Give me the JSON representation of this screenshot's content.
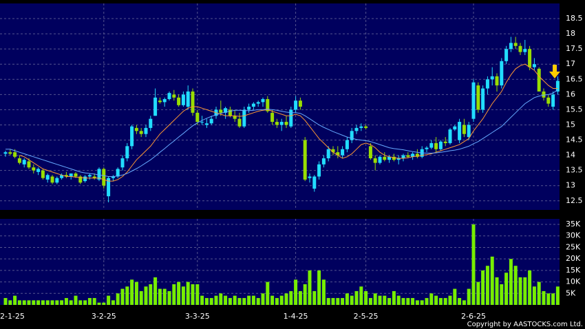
{
  "chart_data": {
    "type": "candlestick",
    "categories": [
      "2-1-25",
      null,
      null,
      null,
      null,
      null,
      null,
      null,
      null,
      null,
      null,
      null,
      null,
      null,
      null,
      null,
      null,
      null,
      null,
      null,
      null,
      "3-2-25",
      null,
      null,
      null,
      null,
      null,
      null,
      null,
      null,
      null,
      null,
      null,
      null,
      null,
      null,
      null,
      null,
      null,
      null,
      null,
      "3-3-25",
      null,
      null,
      null,
      null,
      null,
      null,
      null,
      null,
      null,
      null,
      null,
      null,
      null,
      null,
      null,
      null,
      null,
      null,
      null,
      null,
      "1-4-25",
      null,
      null,
      null,
      null,
      null,
      null,
      null,
      null,
      null,
      null,
      null,
      null,
      null,
      null,
      "2-5-25",
      null,
      null,
      null,
      null,
      null,
      null,
      null,
      null,
      null,
      null,
      null,
      null,
      null,
      null,
      null,
      null,
      null,
      null,
      null,
      null,
      null,
      null,
      "2-6-25",
      null,
      null,
      null,
      null,
      null,
      null,
      null,
      null,
      null,
      null,
      null,
      null,
      null,
      null,
      null,
      null,
      null,
      null
    ],
    "ohlc": [
      [
        14.05,
        14.15,
        13.95,
        14.1
      ],
      [
        14.1,
        14.2,
        14.0,
        14.05
      ],
      [
        14.1,
        14.2,
        13.9,
        13.95
      ],
      [
        13.9,
        14.0,
        13.7,
        13.75
      ],
      [
        13.7,
        13.9,
        13.6,
        13.85
      ],
      [
        13.8,
        13.9,
        13.55,
        13.6
      ],
      [
        13.6,
        13.7,
        13.4,
        13.5
      ],
      [
        13.45,
        13.6,
        13.35,
        13.55
      ],
      [
        13.5,
        13.55,
        13.2,
        13.25
      ],
      [
        13.2,
        13.4,
        13.1,
        13.35
      ],
      [
        13.3,
        13.35,
        13.05,
        13.1
      ],
      [
        13.1,
        13.3,
        13.05,
        13.25
      ],
      [
        13.25,
        13.4,
        13.2,
        13.35
      ],
      [
        13.35,
        13.45,
        13.25,
        13.3
      ],
      [
        13.3,
        13.4,
        13.2,
        13.4
      ],
      [
        13.4,
        13.45,
        13.25,
        13.3
      ],
      [
        13.3,
        13.35,
        13.05,
        13.1
      ],
      [
        13.15,
        13.35,
        13.1,
        13.3
      ],
      [
        13.3,
        13.4,
        13.2,
        13.35
      ],
      [
        13.3,
        13.4,
        13.2,
        13.25
      ],
      [
        13.2,
        13.6,
        13.15,
        13.55
      ],
      [
        13.55,
        13.6,
        12.9,
        13.0
      ],
      [
        12.65,
        13.3,
        12.45,
        13.25
      ],
      [
        13.25,
        13.35,
        13.15,
        13.3
      ],
      [
        13.3,
        13.6,
        13.25,
        13.55
      ],
      [
        13.6,
        14.0,
        13.5,
        13.9
      ],
      [
        13.9,
        14.4,
        13.8,
        14.3
      ],
      [
        14.3,
        15.0,
        14.2,
        14.95
      ],
      [
        14.9,
        15.0,
        14.7,
        14.8
      ],
      [
        14.8,
        14.9,
        14.6,
        14.7
      ],
      [
        14.7,
        15.0,
        14.6,
        14.9
      ],
      [
        14.9,
        15.3,
        14.8,
        15.2
      ],
      [
        15.3,
        16.2,
        15.3,
        15.9
      ],
      [
        15.8,
        15.9,
        15.7,
        15.75
      ],
      [
        15.75,
        15.9,
        15.6,
        15.85
      ],
      [
        15.85,
        16.1,
        15.8,
        16.05
      ],
      [
        16.0,
        16.15,
        15.8,
        15.9
      ],
      [
        15.9,
        16.0,
        15.6,
        15.65
      ],
      [
        15.65,
        16.1,
        15.6,
        16.0
      ],
      [
        15.6,
        16.3,
        15.5,
        16.1
      ],
      [
        16.1,
        16.2,
        15.3,
        15.4
      ],
      [
        15.4,
        15.5,
        15.0,
        15.1
      ],
      [
        15.1,
        15.3,
        15.0,
        15.1
      ],
      [
        15.0,
        15.2,
        14.9,
        15.05
      ],
      [
        15.05,
        15.3,
        15.0,
        15.2
      ],
      [
        15.3,
        15.6,
        15.2,
        15.5
      ],
      [
        15.5,
        15.8,
        15.3,
        15.4
      ],
      [
        15.4,
        15.6,
        15.2,
        15.55
      ],
      [
        15.5,
        15.6,
        15.25,
        15.3
      ],
      [
        15.3,
        15.5,
        15.1,
        15.2
      ],
      [
        15.2,
        15.4,
        14.9,
        14.95
      ],
      [
        14.95,
        15.6,
        14.9,
        15.5
      ],
      [
        15.5,
        15.7,
        15.4,
        15.6
      ],
      [
        15.6,
        15.75,
        15.5,
        15.7
      ],
      [
        15.7,
        15.8,
        15.6,
        15.75
      ],
      [
        15.75,
        15.9,
        15.6,
        15.85
      ],
      [
        15.85,
        15.95,
        15.4,
        15.45
      ],
      [
        15.4,
        15.5,
        15.0,
        15.1
      ],
      [
        15.1,
        15.2,
        14.9,
        15.0
      ],
      [
        15.0,
        15.2,
        14.8,
        15.1
      ],
      [
        15.1,
        15.3,
        14.9,
        15.0
      ],
      [
        14.95,
        15.6,
        14.9,
        15.5
      ],
      [
        15.5,
        15.95,
        15.4,
        15.8
      ],
      [
        15.8,
        15.9,
        15.5,
        15.6
      ],
      [
        14.5,
        14.6,
        13.15,
        13.2
      ],
      [
        13.25,
        13.4,
        13.1,
        13.3
      ],
      [
        12.9,
        13.35,
        12.8,
        13.3
      ],
      [
        13.3,
        13.8,
        13.2,
        13.7
      ],
      [
        13.7,
        14.0,
        13.6,
        13.9
      ],
      [
        13.9,
        14.3,
        13.8,
        14.2
      ],
      [
        14.2,
        14.3,
        14.0,
        14.1
      ],
      [
        14.1,
        14.3,
        13.9,
        14.0
      ],
      [
        14.0,
        14.3,
        13.9,
        14.2
      ],
      [
        14.2,
        14.6,
        14.1,
        14.5
      ],
      [
        14.5,
        14.9,
        14.4,
        14.8
      ],
      [
        14.8,
        15.0,
        14.7,
        14.9
      ],
      [
        14.9,
        15.05,
        14.8,
        14.95
      ],
      [
        14.95,
        15.0,
        14.85,
        14.9
      ],
      [
        14.3,
        14.4,
        13.85,
        13.9
      ],
      [
        13.9,
        14.0,
        13.5,
        13.75
      ],
      [
        13.75,
        14.0,
        13.7,
        13.95
      ],
      [
        13.95,
        14.1,
        13.8,
        13.85
      ],
      [
        13.85,
        14.0,
        13.75,
        13.95
      ],
      [
        13.95,
        14.05,
        13.8,
        13.85
      ],
      [
        13.85,
        14.0,
        13.7,
        13.9
      ],
      [
        13.9,
        14.05,
        13.8,
        14.0
      ],
      [
        14.0,
        14.1,
        13.9,
        13.95
      ],
      [
        13.95,
        14.1,
        13.85,
        14.05
      ],
      [
        14.05,
        14.2,
        13.9,
        13.95
      ],
      [
        13.95,
        14.3,
        13.9,
        14.2
      ],
      [
        14.2,
        14.3,
        14.1,
        14.25
      ],
      [
        14.25,
        14.5,
        14.2,
        14.4
      ],
      [
        14.4,
        14.6,
        14.1,
        14.2
      ],
      [
        14.2,
        14.5,
        14.15,
        14.45
      ],
      [
        14.45,
        14.6,
        14.3,
        14.4
      ],
      [
        14.4,
        14.9,
        14.35,
        14.85
      ],
      [
        14.85,
        15.0,
        14.8,
        14.95
      ],
      [
        14.5,
        15.2,
        14.4,
        15.1
      ],
      [
        15.0,
        15.2,
        14.6,
        14.7
      ],
      [
        14.6,
        15.1,
        14.5,
        15.0
      ],
      [
        15.2,
        16.5,
        15.1,
        16.4
      ],
      [
        16.3,
        16.4,
        15.4,
        15.5
      ],
      [
        15.5,
        16.3,
        15.4,
        16.2
      ],
      [
        16.2,
        16.6,
        16.0,
        16.5
      ],
      [
        16.5,
        16.9,
        16.3,
        16.6
      ],
      [
        16.6,
        16.7,
        16.1,
        16.3
      ],
      [
        16.3,
        17.2,
        16.2,
        17.1
      ],
      [
        17.1,
        17.6,
        17.0,
        17.5
      ],
      [
        17.5,
        17.9,
        17.4,
        17.7
      ],
      [
        17.7,
        17.9,
        17.5,
        17.6
      ],
      [
        17.6,
        17.7,
        17.3,
        17.4
      ],
      [
        17.4,
        17.8,
        17.3,
        17.5
      ],
      [
        17.5,
        17.6,
        16.8,
        16.9
      ],
      [
        16.9,
        17.2,
        16.8,
        17.0
      ],
      [
        16.85,
        16.9,
        16.1,
        16.1
      ],
      [
        16.1,
        16.2,
        15.8,
        15.9
      ],
      [
        15.9,
        16.0,
        15.6,
        15.7
      ],
      [
        15.6,
        16.1,
        15.5,
        16.0
      ],
      [
        16.1,
        16.6,
        16.0,
        16.45
      ]
    ],
    "volume": [
      3,
      2,
      4,
      2,
      2,
      2,
      2,
      2,
      2,
      2,
      2,
      2,
      2,
      3,
      2,
      4,
      2,
      2,
      3,
      3,
      1,
      1,
      4,
      2,
      5,
      7,
      8,
      11,
      10,
      6,
      8,
      9,
      12,
      7,
      7,
      6,
      9,
      10,
      8,
      10,
      9,
      9,
      4,
      3,
      3,
      4,
      5,
      4,
      3,
      4,
      3,
      3,
      4,
      4,
      3,
      5,
      10,
      4,
      3,
      4,
      5,
      6,
      11,
      6,
      9,
      15,
      6,
      15,
      11,
      3,
      3,
      3,
      3,
      5,
      4,
      6,
      8,
      6,
      3,
      5,
      4,
      4,
      3,
      6,
      4,
      3,
      3,
      3,
      2,
      2,
      3,
      5,
      4,
      3,
      3,
      4,
      7,
      3,
      2,
      7,
      35,
      10,
      15,
      17,
      21,
      12,
      9,
      14,
      20,
      17,
      12,
      12,
      15,
      8,
      10,
      6,
      5,
      5,
      8
    ],
    "ma": [
      {
        "color": "#ff9933",
        "values": [
          null,
          null,
          null,
          14.0,
          13.95,
          13.85,
          13.75,
          13.65,
          13.55,
          13.5,
          13.45,
          13.4,
          13.35,
          13.3,
          13.3,
          13.28,
          13.27,
          13.25,
          13.25,
          13.25,
          13.25,
          13.2,
          13.15,
          13.15,
          13.2,
          13.3,
          13.45,
          13.65,
          13.85,
          14.0,
          14.15,
          14.3,
          14.5,
          14.7,
          14.85,
          15.0,
          15.15,
          15.3,
          15.45,
          15.55,
          15.6,
          15.6,
          15.55,
          15.5,
          15.45,
          15.4,
          15.35,
          15.3,
          15.3,
          15.3,
          15.28,
          15.3,
          15.35,
          15.4,
          15.45,
          15.48,
          15.5,
          15.45,
          15.4,
          15.35,
          15.3,
          15.3,
          15.35,
          15.3,
          15.15,
          14.95,
          14.75,
          14.55,
          14.4,
          14.25,
          14.1,
          14.0,
          13.9,
          13.95,
          14.05,
          14.2,
          14.35,
          14.4,
          14.35,
          14.25,
          14.1,
          14.0,
          13.95,
          13.92,
          13.9,
          13.9,
          13.92,
          13.95,
          13.97,
          14.0,
          14.02,
          14.05,
          14.1,
          14.15,
          14.2,
          14.25,
          14.3,
          14.35,
          14.45,
          14.55,
          14.8,
          15.0,
          15.2,
          15.45,
          15.7,
          15.9,
          16.1,
          16.4,
          16.65,
          16.85,
          16.95,
          17.0,
          16.9,
          16.8,
          16.6,
          16.45,
          16.3,
          16.2,
          16.2
        ]
      },
      {
        "color": "#66aaff",
        "values": [
          14.2,
          14.2,
          14.15,
          14.1,
          14.05,
          14.0,
          13.95,
          13.9,
          13.85,
          13.8,
          13.75,
          13.7,
          13.65,
          13.6,
          13.55,
          13.5,
          13.45,
          13.42,
          13.4,
          13.38,
          13.35,
          13.33,
          13.3,
          13.3,
          13.32,
          13.35,
          13.4,
          13.48,
          13.56,
          13.65,
          13.75,
          13.85,
          13.97,
          14.1,
          14.22,
          14.35,
          14.47,
          14.6,
          14.72,
          14.85,
          14.97,
          15.07,
          15.15,
          15.22,
          15.28,
          15.33,
          15.38,
          15.42,
          15.45,
          15.48,
          15.48,
          15.47,
          15.47,
          15.48,
          15.5,
          15.5,
          15.52,
          15.5,
          15.48,
          15.45,
          15.42,
          15.4,
          15.4,
          15.38,
          15.3,
          15.2,
          15.1,
          15.0,
          14.92,
          14.85,
          14.78,
          14.72,
          14.66,
          14.6,
          14.56,
          14.52,
          14.5,
          14.48,
          14.45,
          14.4,
          14.35,
          14.3,
          14.25,
          14.22,
          14.2,
          14.18,
          14.15,
          14.12,
          14.1,
          14.08,
          14.07,
          14.07,
          14.08,
          14.1,
          14.12,
          14.15,
          14.17,
          14.2,
          14.25,
          14.3,
          14.38,
          14.45,
          14.55,
          14.65,
          14.75,
          14.85,
          14.95,
          15.1,
          15.25,
          15.4,
          15.55,
          15.7,
          15.8,
          15.9,
          15.95,
          15.98,
          16.0,
          16.05,
          16.15
        ]
      }
    ],
    "up_color": "#22ddff",
    "down_color": "#99dd00",
    "volume_color": "#77ee00",
    "ylim": [
      12.2,
      19.0
    ],
    "yticks": [
      12.5,
      13,
      13.5,
      14,
      14.5,
      15,
      15.5,
      16,
      16.5,
      17,
      17.5,
      18,
      18.5
    ],
    "y2lim": [
      0,
      37.4
    ],
    "y2ticks": [
      {
        "value": 5,
        "label": "5K"
      },
      {
        "value": 10,
        "label": "10K"
      },
      {
        "value": 15,
        "label": "15K"
      },
      {
        "value": 20,
        "label": "20K"
      },
      {
        "value": 25,
        "label": "25K"
      },
      {
        "value": 30,
        "label": "30K"
      },
      {
        "value": 35,
        "label": "35K"
      }
    ],
    "grid": true,
    "source": "Copyright by AASTOCKS.com Ltd."
  }
}
